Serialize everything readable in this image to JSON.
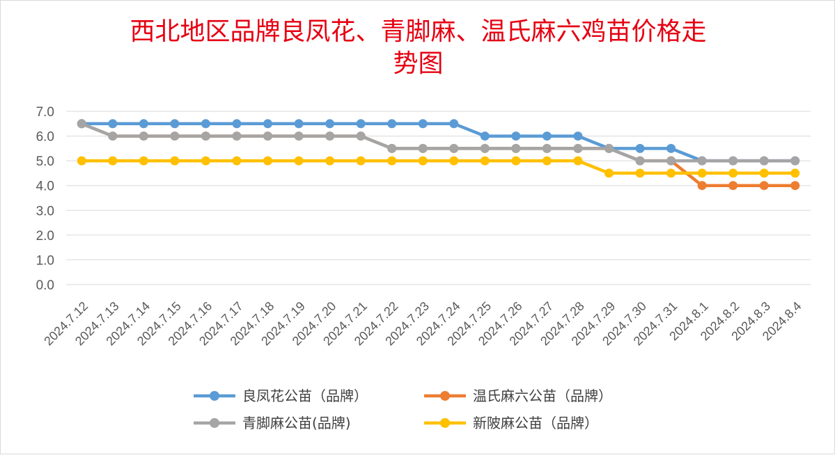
{
  "chart_data": {
    "type": "line",
    "title": "西北地区品牌良凤花、青脚麻、温氏麻六鸡苗价格走势图",
    "title_lines": [
      "西北地区品牌良凤花、青脚麻、温氏麻六鸡苗价格走",
      "势图"
    ],
    "categories": [
      "2024.7.12",
      "2024.7.13",
      "2024.7.14",
      "2024.7.15",
      "2024.7.16",
      "2024.7.17",
      "2024.7.18",
      "2024.7.19",
      "2024.7.20",
      "2024.7.21",
      "2024.7.22",
      "2024.7.23",
      "2024.7.24",
      "2024.7.25",
      "2024.7.26",
      "2024.7.27",
      "2024.7.28",
      "2024.7.29",
      "2024.7.30",
      "2024.7.31",
      "2024.8.1",
      "2024.8.2",
      "2024.8.3",
      "2024.8.4"
    ],
    "ylim": [
      0,
      7
    ],
    "yticks": [
      "0.0",
      "1.0",
      "2.0",
      "3.0",
      "4.0",
      "5.0",
      "6.0",
      "7.0"
    ],
    "grid": true,
    "legend_position": "bottom",
    "series": [
      {
        "name": "良凤花公苗（品牌）",
        "color": "#5b9bd5",
        "values": [
          6.5,
          6.5,
          6.5,
          6.5,
          6.5,
          6.5,
          6.5,
          6.5,
          6.5,
          6.5,
          6.5,
          6.5,
          6.5,
          6.0,
          6.0,
          6.0,
          6.0,
          5.5,
          5.5,
          5.5,
          5.0,
          5.0,
          5.0,
          5.0
        ]
      },
      {
        "name": "温氏麻六公苗（品牌）",
        "color": "#ed7d31",
        "values": [
          6.5,
          6.0,
          6.0,
          6.0,
          6.0,
          6.0,
          6.0,
          6.0,
          6.0,
          6.0,
          5.5,
          5.5,
          5.5,
          5.5,
          5.5,
          5.5,
          5.5,
          5.5,
          5.0,
          5.0,
          4.0,
          4.0,
          4.0,
          4.0
        ]
      },
      {
        "name": "青脚麻公苗(品牌)",
        "color": "#a5a5a5",
        "values": [
          6.5,
          6.0,
          6.0,
          6.0,
          6.0,
          6.0,
          6.0,
          6.0,
          6.0,
          6.0,
          5.5,
          5.5,
          5.5,
          5.5,
          5.5,
          5.5,
          5.5,
          5.5,
          5.0,
          5.0,
          5.0,
          5.0,
          5.0,
          5.0
        ]
      },
      {
        "name": "新陂麻公苗（品牌）",
        "color": "#ffc000",
        "values": [
          5.0,
          5.0,
          5.0,
          5.0,
          5.0,
          5.0,
          5.0,
          5.0,
          5.0,
          5.0,
          5.0,
          5.0,
          5.0,
          5.0,
          5.0,
          5.0,
          5.0,
          4.5,
          4.5,
          4.5,
          4.5,
          4.5,
          4.5,
          4.5
        ]
      }
    ]
  }
}
